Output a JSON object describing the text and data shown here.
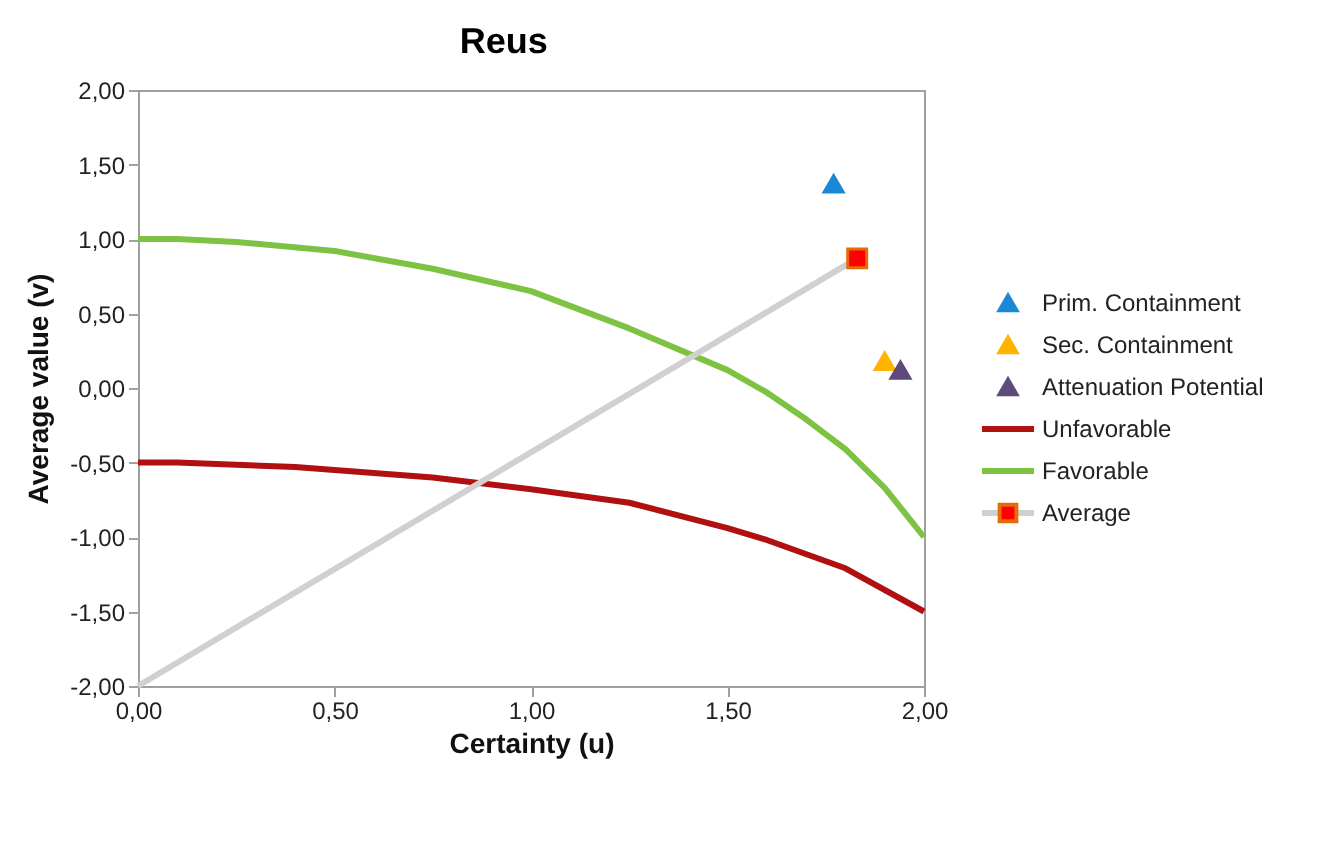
{
  "chart_data": {
    "type": "line",
    "title": "Reus",
    "xlabel": "Certainty (u)",
    "ylabel": "Average value (v)",
    "xlim": [
      0,
      2
    ],
    "ylim": [
      -2,
      2
    ],
    "xticks": [
      {
        "value": 0,
        "label": "0,00"
      },
      {
        "value": 0.5,
        "label": "0,50"
      },
      {
        "value": 1,
        "label": "1,00"
      },
      {
        "value": 1.5,
        "label": "1,50"
      },
      {
        "value": 2,
        "label": "2,00"
      }
    ],
    "yticks": [
      {
        "value": -2,
        "label": "-2,00"
      },
      {
        "value": -1.5,
        "label": "-1,50"
      },
      {
        "value": -1,
        "label": "-1,00"
      },
      {
        "value": -0.5,
        "label": "-0,50"
      },
      {
        "value": 0,
        "label": "0,00"
      },
      {
        "value": 0.5,
        "label": "0,50"
      },
      {
        "value": 1,
        "label": "1,00"
      },
      {
        "value": 1.5,
        "label": "1,50"
      },
      {
        "value": 2,
        "label": "2,00"
      }
    ],
    "grid": false,
    "legend": "right",
    "series": [
      {
        "name": "Prim. Containment",
        "type": "scatter",
        "marker": "triangle",
        "color": "#1a87d8",
        "x": [
          1.77
        ],
        "values": [
          1.37
        ]
      },
      {
        "name": "Sec. Containment",
        "type": "scatter",
        "marker": "triangle",
        "color": "#ffb400",
        "x": [
          1.9
        ],
        "values": [
          0.18
        ]
      },
      {
        "name": "Attenuation Potential",
        "type": "scatter",
        "marker": "triangle",
        "color": "#604a7b",
        "x": [
          1.94
        ],
        "values": [
          0.12
        ]
      },
      {
        "name": "Unfavorable",
        "marker": "none",
        "color": "#b01010",
        "x": [
          0,
          0.1,
          0.4,
          0.75,
          1.0,
          1.25,
          1.5,
          1.6,
          1.8,
          2.0
        ],
        "values": [
          -0.5,
          -0.5,
          -0.53,
          -0.6,
          -0.68,
          -0.77,
          -0.94,
          -1.02,
          -1.21,
          -1.5
        ]
      },
      {
        "name": "Favorable",
        "marker": "none",
        "color": "#7dc242",
        "x": [
          0,
          0.1,
          0.25,
          0.5,
          0.75,
          1.0,
          1.25,
          1.5,
          1.6,
          1.7,
          1.8,
          1.9,
          2.0
        ],
        "values": [
          1.0,
          1.0,
          0.98,
          0.92,
          0.8,
          0.65,
          0.4,
          0.12,
          -0.03,
          -0.21,
          -0.41,
          -0.67,
          -1.0
        ]
      },
      {
        "name": "Average",
        "marker": "none",
        "color": "#d0d0d0",
        "x": [
          0,
          1.83
        ],
        "values": [
          -2.0,
          0.87
        ]
      },
      {
        "type": "scatter",
        "marker": "square",
        "color": "#ff0000",
        "x": [
          1.83
        ],
        "values": [
          0.87
        ]
      }
    ]
  }
}
